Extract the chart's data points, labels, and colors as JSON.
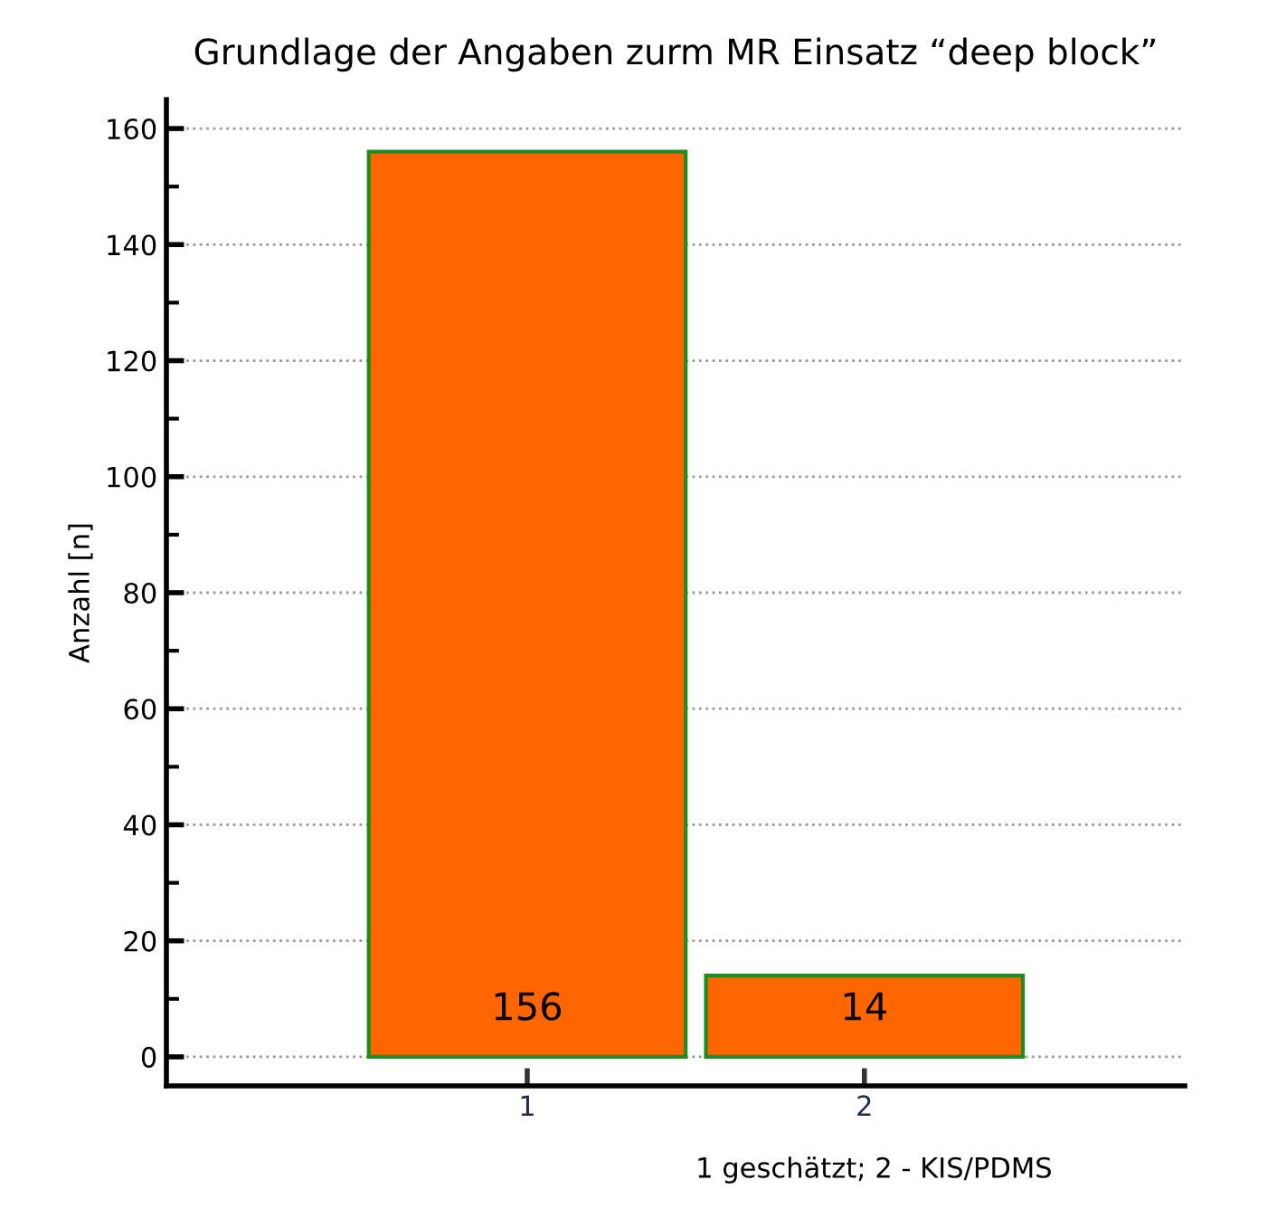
{
  "chart_data": {
    "type": "bar",
    "title": "Grundlage der Angaben zurm MR Einsatz “deep block”",
    "categories": [
      "1",
      "2"
    ],
    "values": [
      156,
      14
    ],
    "color": "#ff6600",
    "ylabel": "Anzahl [n]",
    "xlabel": "1 geschätzt; 2 - KIS/PDMS",
    "ylim": [
      -5,
      165
    ],
    "yticks": [
      0,
      20,
      40,
      60,
      80,
      100,
      120,
      140,
      160
    ],
    "grid": "y",
    "data_labels": true
  }
}
